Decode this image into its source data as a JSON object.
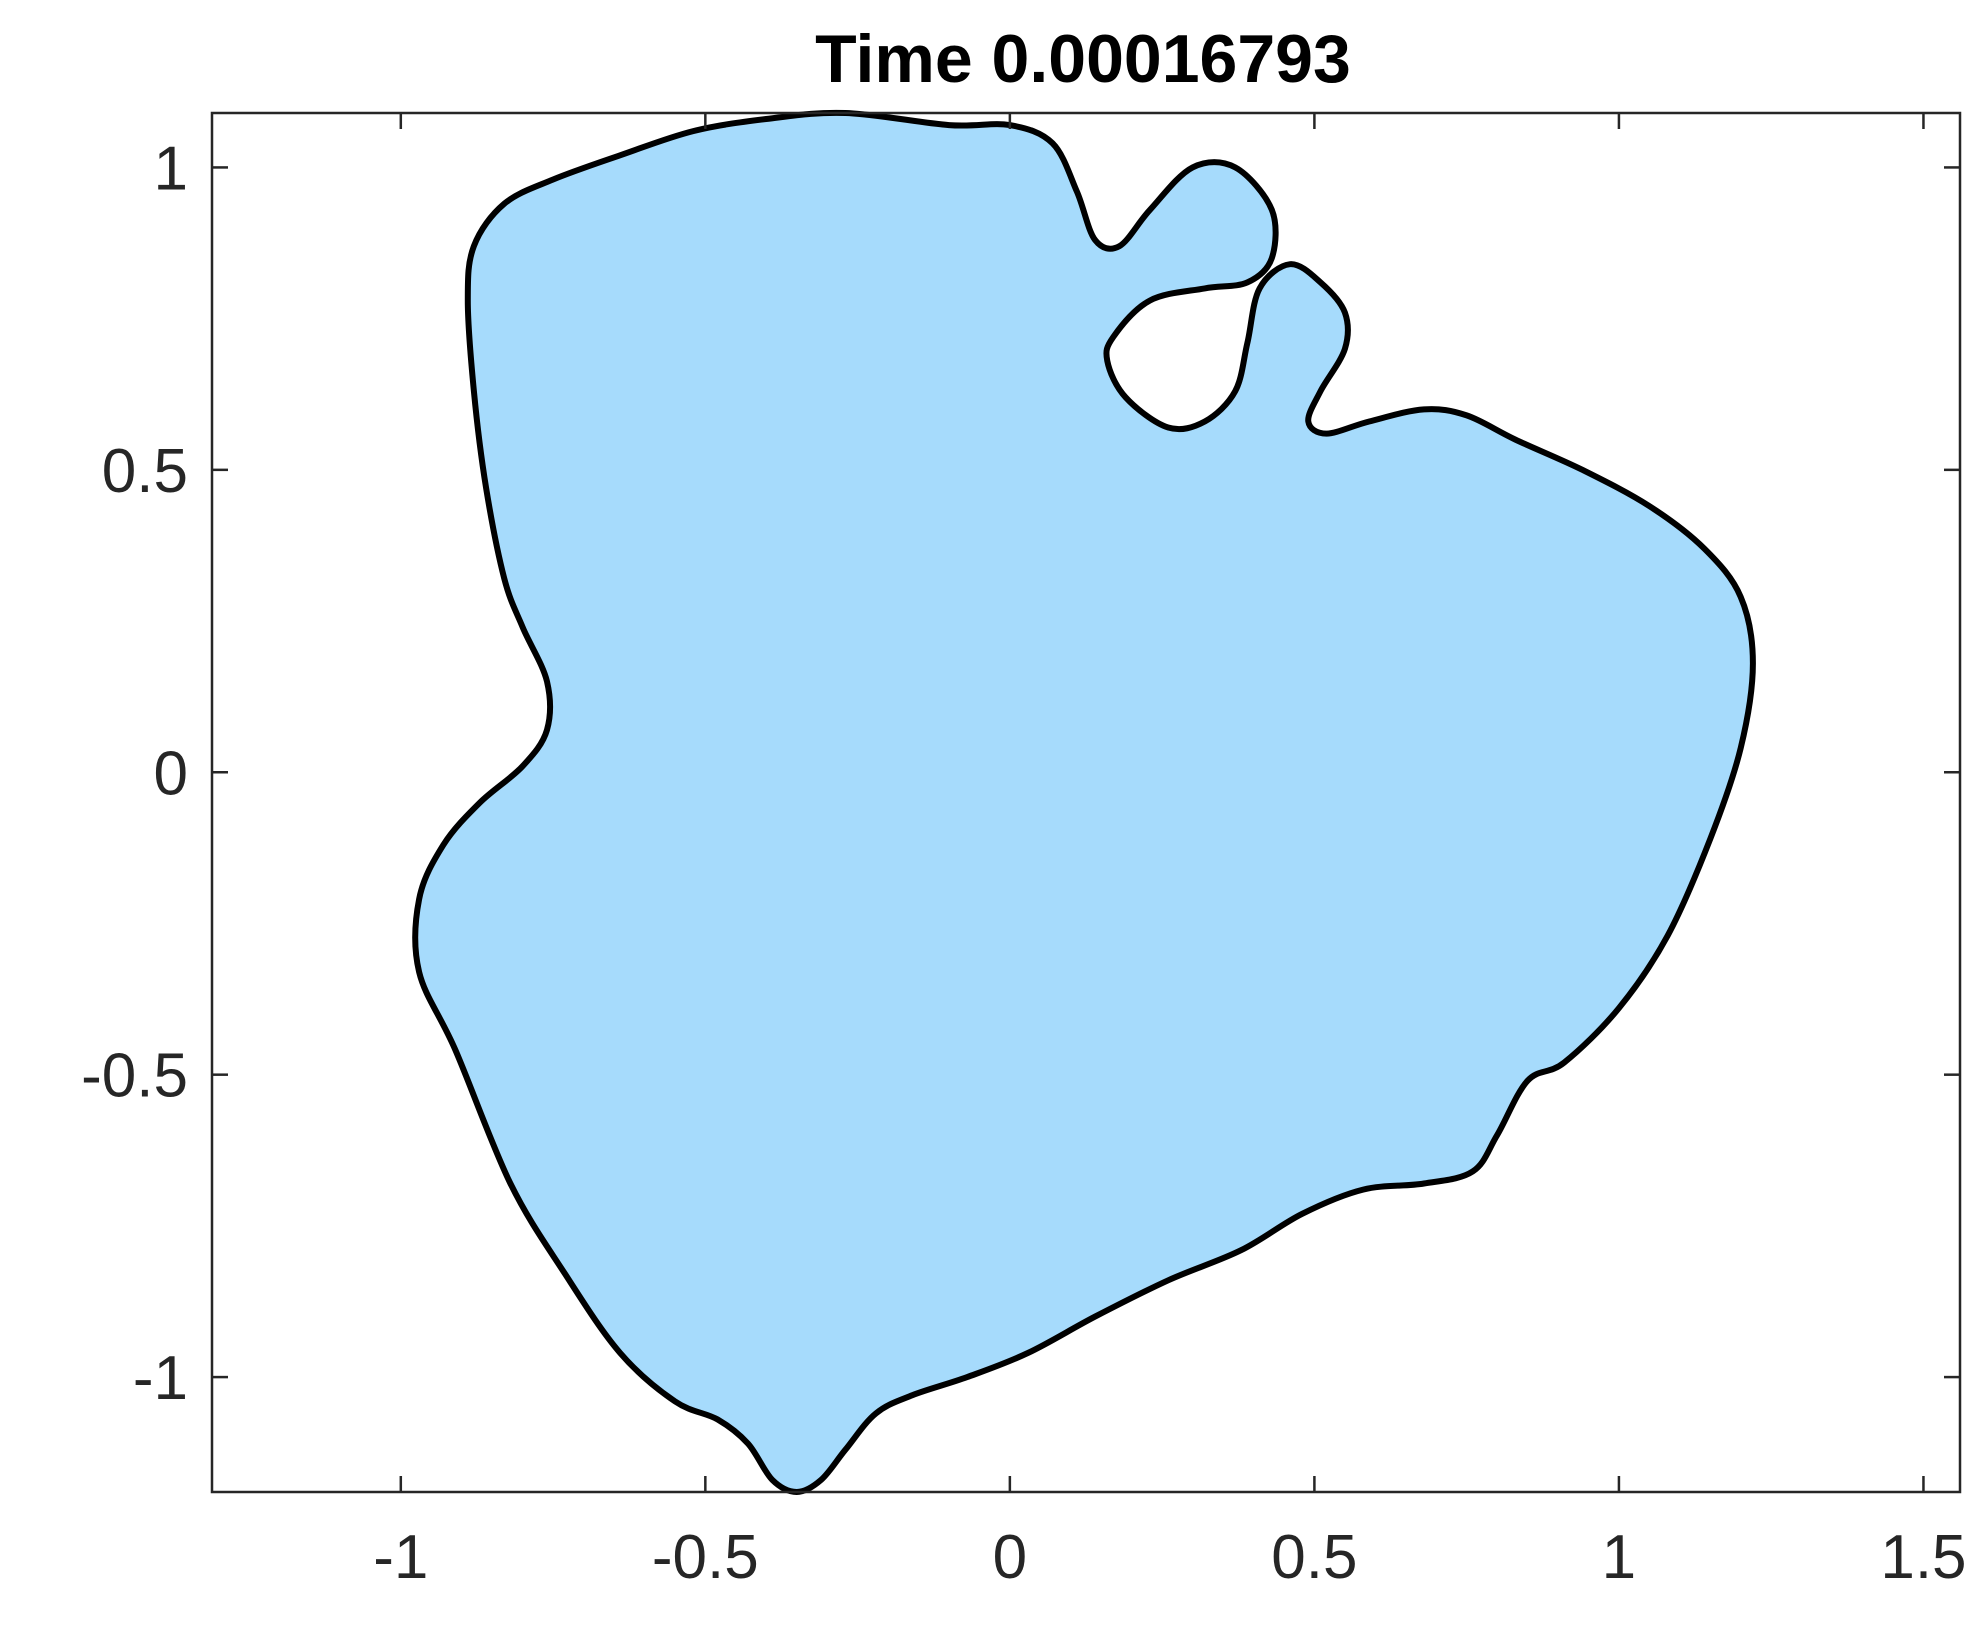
{
  "chart_data": {
    "type": "area",
    "title": "Time 0.00016793",
    "xlabel": "",
    "ylabel": "",
    "xlim": [
      -1.31,
      1.56
    ],
    "ylim": [
      -1.19,
      1.09
    ],
    "grid": false,
    "x_ticks": [
      {
        "value": -1,
        "label": "-1"
      },
      {
        "value": -0.5,
        "label": "-0.5"
      },
      {
        "value": 0,
        "label": "0"
      },
      {
        "value": 0.5,
        "label": "0.5"
      },
      {
        "value": 1,
        "label": "1"
      },
      {
        "value": 1.5,
        "label": "1.5"
      }
    ],
    "y_ticks": [
      {
        "value": 1,
        "label": "1"
      },
      {
        "value": 0.5,
        "label": "0.5"
      },
      {
        "value": 0,
        "label": "0"
      },
      {
        "value": -0.5,
        "label": "-0.5"
      },
      {
        "value": -1,
        "label": "-1"
      }
    ],
    "fill_color": "#a6dbfc",
    "edge_color": "#000000",
    "series": [
      {
        "x": [
          -0.27,
          -0.1,
          0.0,
          0.07,
          0.11,
          0.14,
          0.18,
          0.23,
          0.3,
          0.37,
          0.43,
          0.43,
          0.39,
          0.32,
          0.23,
          0.17,
          0.16,
          0.19,
          0.26,
          0.32,
          0.37,
          0.39,
          0.41,
          0.46,
          0.51,
          0.55,
          0.55,
          0.51,
          0.49,
          0.52,
          0.59,
          0.68,
          0.75,
          0.83,
          0.94,
          1.05,
          1.14,
          1.2,
          1.22,
          1.2,
          1.15,
          1.08,
          1.0,
          0.91,
          0.85,
          0.8,
          0.76,
          0.68,
          0.58,
          0.48,
          0.38,
          0.26,
          0.14,
          0.03,
          -0.07,
          -0.16,
          -0.22,
          -0.27,
          -0.31,
          -0.35,
          -0.39,
          -0.43,
          -0.48,
          -0.55,
          -0.64,
          -0.73,
          -0.82,
          -0.91,
          -0.97,
          -0.97,
          -0.93,
          -0.87,
          -0.8,
          -0.76,
          -0.76,
          -0.8,
          -0.83,
          -0.86,
          -0.88,
          -0.89,
          -0.88,
          -0.83,
          -0.75,
          -0.64,
          -0.52,
          -0.4,
          -0.27
        ],
        "y": [
          1.09,
          1.07,
          1.07,
          1.04,
          0.96,
          0.88,
          0.87,
          0.93,
          1.0,
          1.0,
          0.93,
          0.85,
          0.81,
          0.8,
          0.78,
          0.72,
          0.68,
          0.62,
          0.57,
          0.58,
          0.63,
          0.71,
          0.8,
          0.84,
          0.81,
          0.76,
          0.7,
          0.63,
          0.58,
          0.56,
          0.58,
          0.6,
          0.59,
          0.55,
          0.5,
          0.44,
          0.37,
          0.29,
          0.18,
          0.04,
          -0.11,
          -0.27,
          -0.39,
          -0.48,
          -0.51,
          -0.6,
          -0.66,
          -0.68,
          -0.69,
          -0.73,
          -0.79,
          -0.84,
          -0.9,
          -0.96,
          -1.0,
          -1.03,
          -1.06,
          -1.12,
          -1.17,
          -1.19,
          -1.17,
          -1.11,
          -1.07,
          -1.04,
          -0.96,
          -0.83,
          -0.68,
          -0.46,
          -0.33,
          -0.21,
          -0.12,
          -0.05,
          0.01,
          0.07,
          0.15,
          0.24,
          0.32,
          0.47,
          0.63,
          0.78,
          0.87,
          0.94,
          0.98,
          1.02,
          1.06,
          1.08,
          1.09
        ]
      }
    ]
  }
}
